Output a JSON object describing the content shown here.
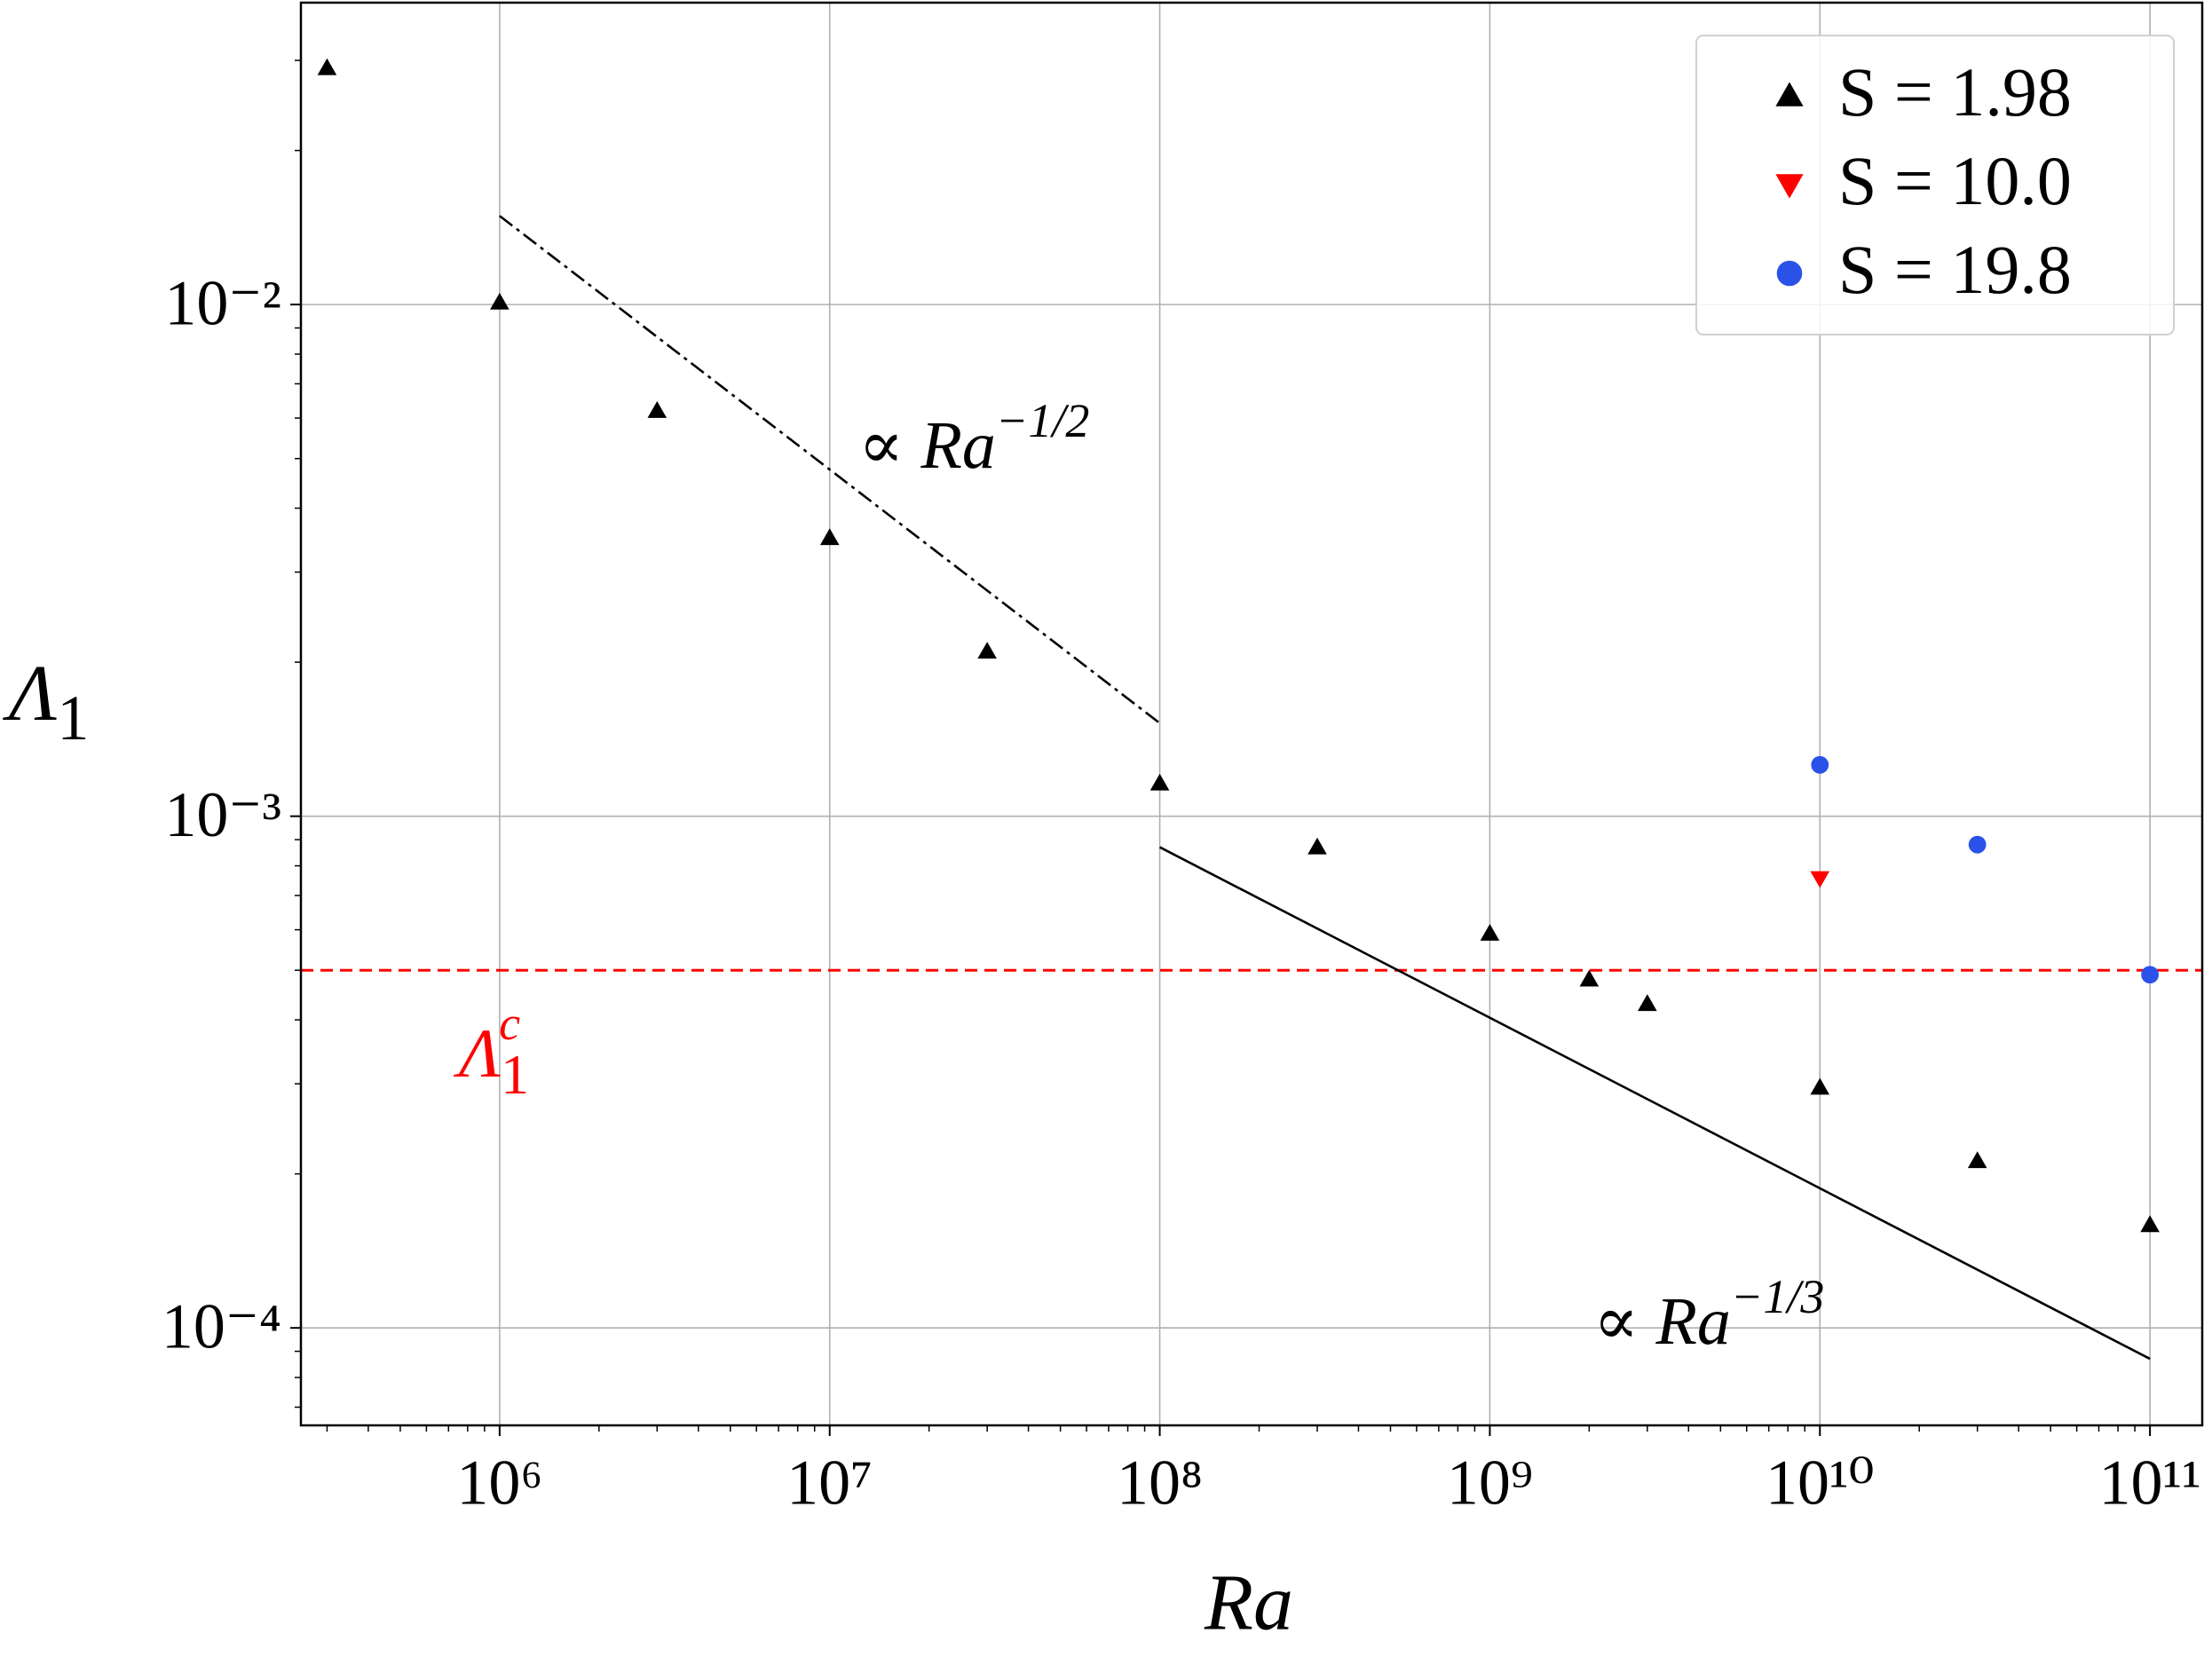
{
  "chart_data": {
    "type": "scatter",
    "xlabel": "Ra",
    "ylabel": {
      "base": "Λ",
      "sub": "1"
    },
    "xscale": "log",
    "yscale": "log",
    "grid": true,
    "legend": "upper right",
    "xlim": [
      250000,
      144000000000
    ],
    "ylim": [
      6.45e-05,
      0.0389
    ],
    "xticks": [
      {
        "value": 1000000,
        "label": "10⁶"
      },
      {
        "value": 10000000,
        "label": "10⁷"
      },
      {
        "value": 100000000,
        "label": "10⁸"
      },
      {
        "value": 1000000000,
        "label": "10⁹"
      },
      {
        "value": 10000000000,
        "label": "10¹⁰"
      },
      {
        "value": 100000000000,
        "label": "10¹¹"
      }
    ],
    "yticks": [
      {
        "value": 0.0001,
        "label": "10⁻⁴"
      },
      {
        "value": 0.001,
        "label": "10⁻³"
      },
      {
        "value": 0.01,
        "label": "10⁻²"
      }
    ],
    "series": [
      {
        "name": "S = 1.98",
        "color": "#000000",
        "marker": "triangle-up",
        "x": [
          300000,
          1000000,
          3000000,
          10000000,
          30000000,
          100000000,
          300000000,
          1000000000,
          2000000000,
          3000000000,
          10000000000,
          30000000000,
          100000000000
        ],
        "values": [
          0.029,
          0.0101,
          0.0062,
          0.0035,
          0.0021,
          0.00116,
          0.00087,
          0.00059,
          0.00048,
          0.00043,
          0.000295,
          0.000212,
          0.000159
        ]
      },
      {
        "name": "S = 10.0",
        "color": "#ff0000",
        "marker": "triangle-down",
        "x": [
          10000000000
        ],
        "values": [
          0.000756
        ]
      },
      {
        "name": "S = 19.8",
        "color": "#2a52e8",
        "marker": "circle",
        "x": [
          10000000000,
          30000000000,
          100000000000
        ],
        "values": [
          0.00126,
          0.00088,
          0.00049
        ]
      }
    ],
    "threshold": {
      "value": 0.0005,
      "color": "#ff0000",
      "label": {
        "base": "Λ",
        "sub": "1",
        "sup": "c"
      }
    },
    "reference_lines": [
      {
        "style": "dashdot",
        "x": [
          1000000,
          100000000
        ],
        "values": [
          0.0149,
          0.00152
        ],
        "label": {
          "prefix": "∝ ",
          "base": "Ra",
          "sup": "−1/2"
        }
      },
      {
        "style": "solid",
        "x": [
          100000000,
          100000000000
        ],
        "values": [
          0.00087,
          8.7e-05
        ],
        "label": {
          "prefix": "∝ ",
          "base": "Ra",
          "sup": "−1/3"
        }
      }
    ]
  }
}
